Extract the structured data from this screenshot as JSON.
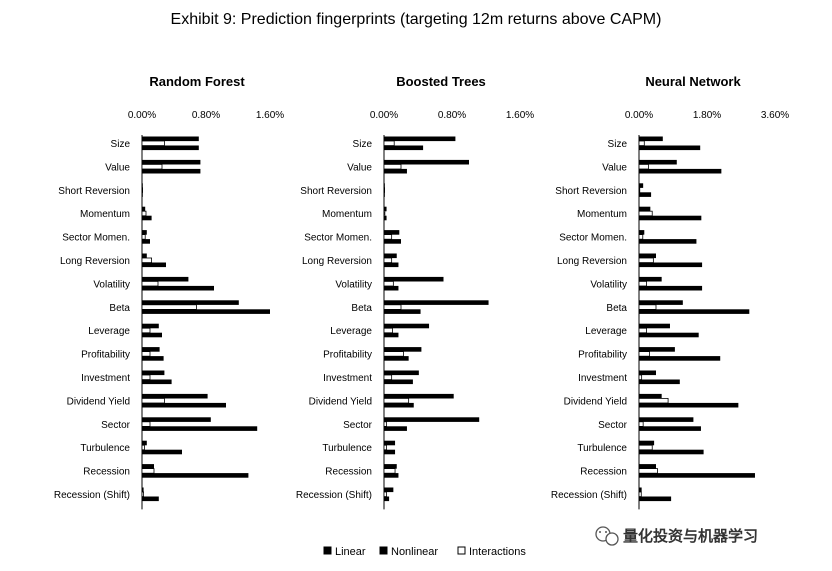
{
  "title": "Exhibit 9: Prediction fingerprints (targeting 12m returns above CAPM)",
  "watermark": "量化投资与机器学习",
  "legend": [
    "Linear",
    "Nonlinear",
    "Interactions"
  ],
  "colors": {
    "linear": "#000000",
    "nonlinear": "#000000",
    "interactions": "#ffffff"
  },
  "chart_data": [
    {
      "type": "bar",
      "title": "Random Forest",
      "xlim": [
        0,
        1.6
      ],
      "ticks": [
        "0.00%",
        "0.80%",
        "1.60%"
      ],
      "categories": [
        "Size",
        "Value",
        "Short Reversion",
        "Momentum",
        "Sector Momen.",
        "Long Reversion",
        "Volatility",
        "Beta",
        "Leverage",
        "Profitability",
        "Investment",
        "Dividend Yield",
        "Sector",
        "Turbulence",
        "Recession",
        "Recession (Shift)"
      ],
      "series": [
        {
          "name": "Linear",
          "values": [
            0.71,
            0.73,
            0.01,
            0.04,
            0.06,
            0.06,
            0.58,
            1.21,
            0.21,
            0.22,
            0.28,
            0.82,
            0.86,
            0.06,
            0.15,
            0.02
          ]
        },
        {
          "name": "Nonlinear",
          "values": [
            0.71,
            0.73,
            0.01,
            0.12,
            0.1,
            0.3,
            0.9,
            1.6,
            0.25,
            0.27,
            0.37,
            1.05,
            1.44,
            0.5,
            1.33,
            0.21
          ]
        },
        {
          "name": "Interactions",
          "values": [
            0.28,
            0.25,
            0.0,
            0.05,
            0.04,
            0.12,
            0.2,
            0.68,
            0.1,
            0.1,
            0.1,
            0.28,
            0.1,
            0.03,
            0.15,
            0.02
          ]
        }
      ]
    },
    {
      "type": "bar",
      "title": "Boosted Trees",
      "xlim": [
        0,
        1.6
      ],
      "ticks": [
        "0.00%",
        "0.80%",
        "1.60%"
      ],
      "categories": [
        "Size",
        "Value",
        "Short Reversion",
        "Momentum",
        "Sector Momen.",
        "Long Reversion",
        "Volatility",
        "Beta",
        "Leverage",
        "Profitability",
        "Investment",
        "Dividend Yield",
        "Sector",
        "Turbulence",
        "Recession",
        "Recession (Shift)"
      ],
      "series": [
        {
          "name": "Linear",
          "values": [
            0.84,
            1.0,
            0.01,
            0.03,
            0.18,
            0.15,
            0.7,
            1.23,
            0.53,
            0.44,
            0.41,
            0.82,
            1.12,
            0.13,
            0.15,
            0.11
          ]
        },
        {
          "name": "Nonlinear",
          "values": [
            0.46,
            0.27,
            0.01,
            0.03,
            0.2,
            0.17,
            0.17,
            0.43,
            0.17,
            0.29,
            0.34,
            0.35,
            0.27,
            0.13,
            0.17,
            0.06
          ]
        },
        {
          "name": "Interactions",
          "values": [
            0.12,
            0.2,
            0.0,
            0.01,
            0.09,
            0.09,
            0.11,
            0.2,
            0.1,
            0.23,
            0.09,
            0.29,
            0.03,
            0.03,
            0.13,
            0.03
          ]
        }
      ]
    },
    {
      "type": "bar",
      "title": "Neural Network",
      "xlim": [
        0,
        3.6
      ],
      "ticks": [
        "0.00%",
        "1.80%",
        "3.60%"
      ],
      "categories": [
        "Size",
        "Value",
        "Short Reversion",
        "Momentum",
        "Sector Momen.",
        "Long Reversion",
        "Volatility",
        "Beta",
        "Leverage",
        "Profitability",
        "Investment",
        "Dividend Yield",
        "Sector",
        "Turbulence",
        "Recession",
        "Recession (Shift)"
      ],
      "series": [
        {
          "name": "Linear",
          "values": [
            0.63,
            1.0,
            0.11,
            0.3,
            0.14,
            0.45,
            0.6,
            1.16,
            0.82,
            0.95,
            0.45,
            0.6,
            1.44,
            0.4,
            0.45,
            0.07
          ]
        },
        {
          "name": "Nonlinear",
          "values": [
            1.62,
            2.18,
            0.32,
            1.65,
            1.52,
            1.67,
            1.67,
            2.92,
            1.58,
            2.15,
            1.08,
            2.63,
            1.64,
            1.71,
            3.07,
            0.85
          ]
        },
        {
          "name": "Interactions",
          "values": [
            0.14,
            0.25,
            0.02,
            0.35,
            0.1,
            0.38,
            0.2,
            0.45,
            0.2,
            0.28,
            0.07,
            0.77,
            0.11,
            0.35,
            0.49,
            0.06
          ]
        }
      ]
    }
  ]
}
